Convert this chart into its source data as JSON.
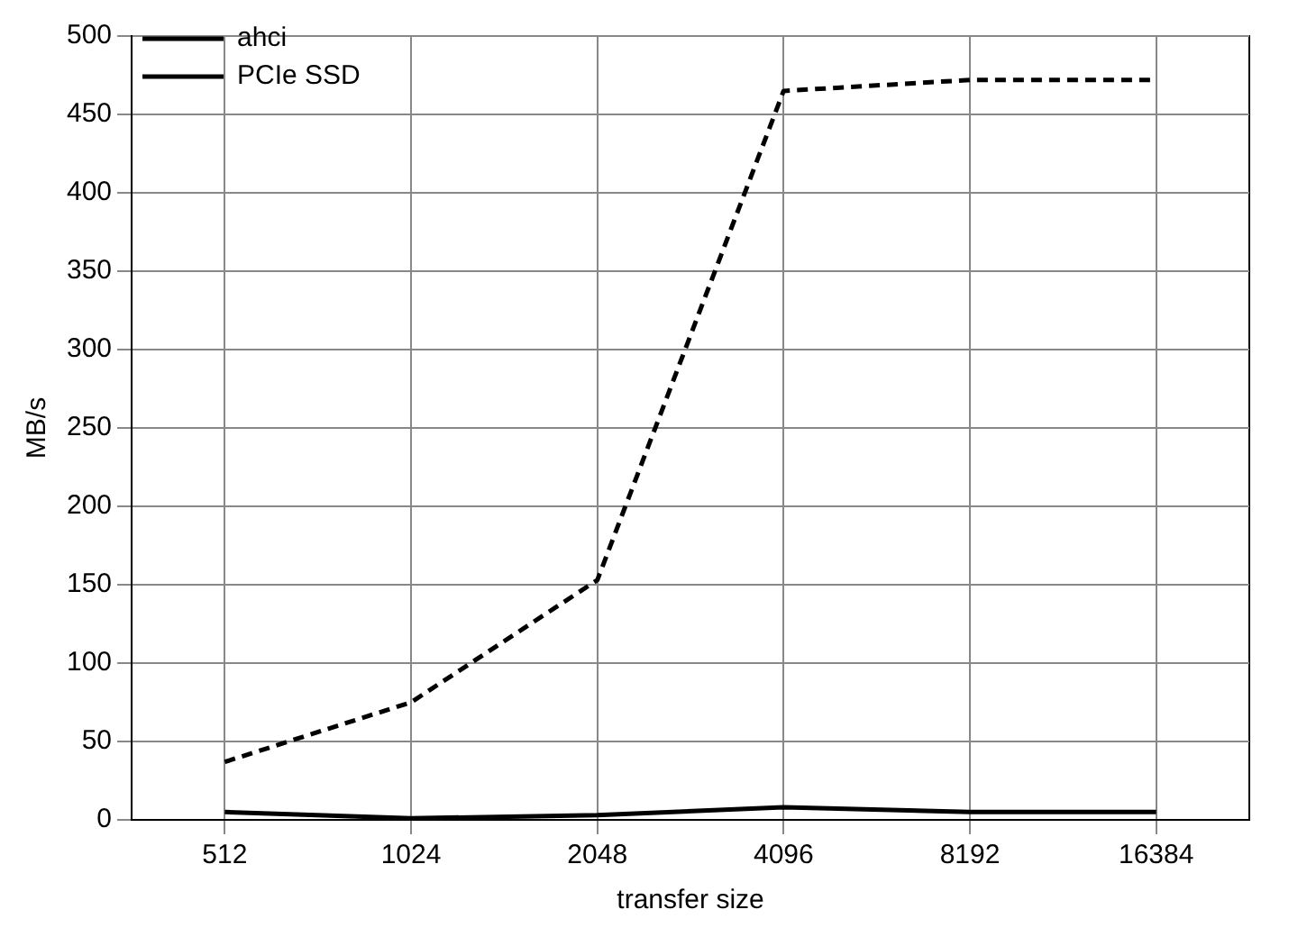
{
  "chart_data": {
    "type": "line",
    "xlabel": "transfer size",
    "ylabel": "MB/s",
    "categories": [
      "512",
      "1024",
      "2048",
      "4096",
      "8192",
      "16384"
    ],
    "series": [
      {
        "name": "ahci",
        "color": "#000000",
        "line_style": "solid",
        "values": [
          5,
          1,
          3,
          8,
          5,
          5
        ]
      },
      {
        "name": "PCIe SSD",
        "color": "#000000",
        "line_style": "dashed",
        "values": [
          37,
          75,
          153,
          465,
          472,
          472
        ]
      }
    ],
    "ylim": [
      0,
      500
    ],
    "yticks": [
      0,
      50,
      100,
      150,
      200,
      250,
      300,
      350,
      400,
      450,
      500
    ],
    "grid": true,
    "legend": "top left",
    "marker": "none"
  }
}
